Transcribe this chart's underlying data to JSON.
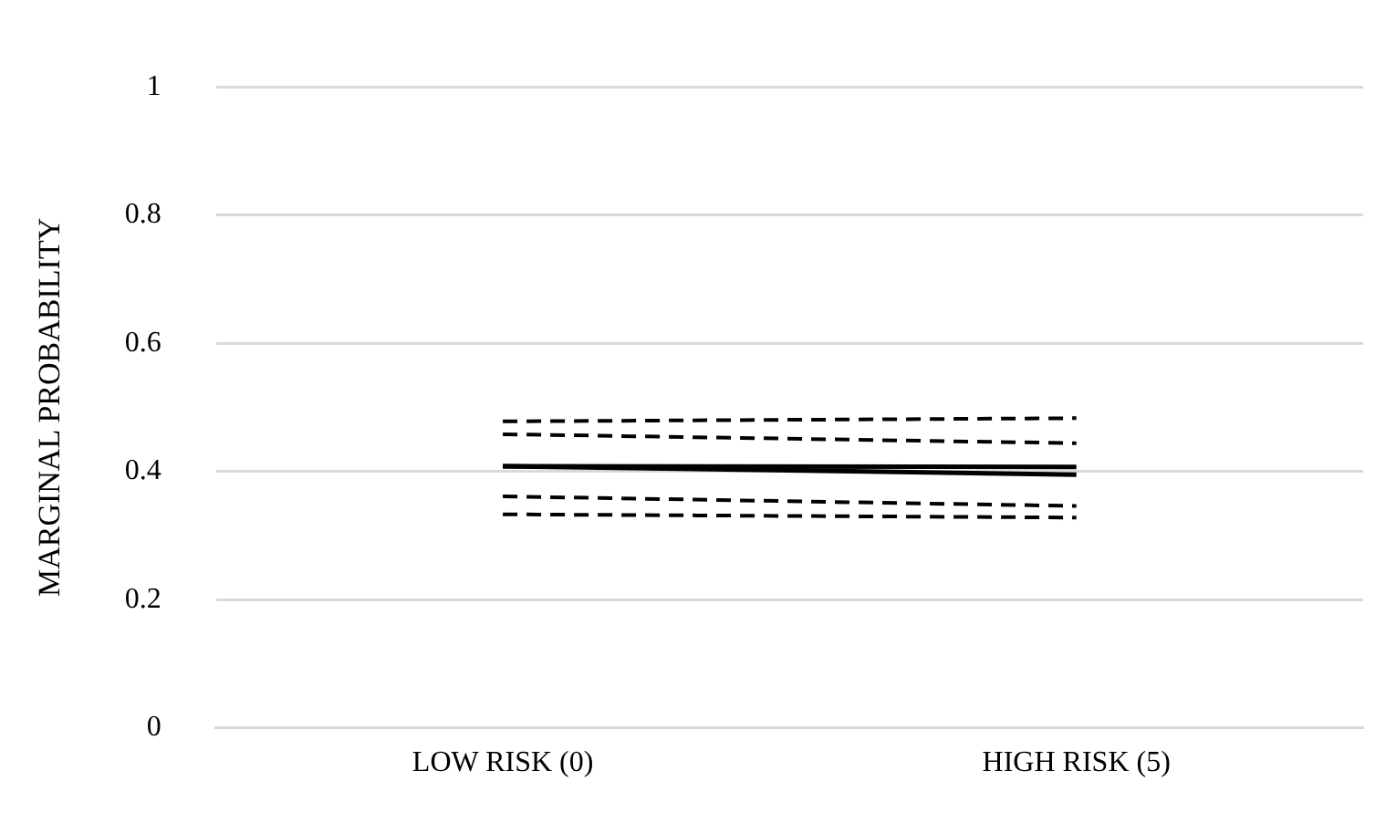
{
  "chart_data": {
    "type": "line",
    "ylabel": "MARGINAL PROBABILITY",
    "categories": [
      "LOW RISK (0)",
      "HIGH RISK (5)"
    ],
    "series": [
      {
        "color": "#000000",
        "values": [
          0.408,
          0.407
        ],
        "line_style": "solid"
      },
      {
        "color": "#000000",
        "values": [
          0.408,
          0.395
        ],
        "line_style": "solid"
      },
      {
        "color": "#000000",
        "values": [
          0.478,
          0.483
        ],
        "line_style": "dashed"
      },
      {
        "color": "#000000",
        "values": [
          0.458,
          0.444
        ],
        "line_style": "dashed"
      },
      {
        "color": "#000000",
        "values": [
          0.361,
          0.346
        ],
        "line_style": "dashed"
      },
      {
        "color": "#000000",
        "values": [
          0.333,
          0.328
        ],
        "line_style": "dashed"
      }
    ],
    "ylim": [
      0,
      1
    ],
    "yticks": [
      0,
      0.2,
      0.4,
      0.6,
      0.8,
      1
    ],
    "grid": "y",
    "legend": false,
    "marker": "none"
  }
}
